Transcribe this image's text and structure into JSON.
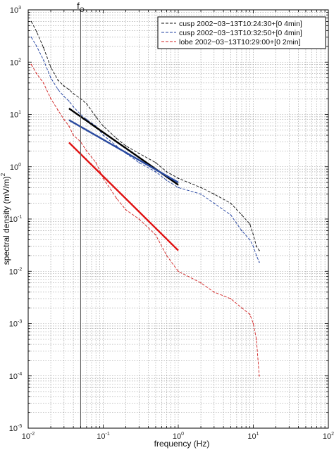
{
  "chart_data": {
    "type": "line",
    "title": "",
    "xlabel": "frequency (Hz)",
    "ylabel": "spectral density (mV/m)",
    "ylabel_exponent": "2",
    "xscale": "log",
    "yscale": "log",
    "xlim": [
      0.01,
      100
    ],
    "ylim": [
      1e-05,
      1000
    ],
    "x_ticks": [
      {
        "base": "10",
        "exp": "-2"
      },
      {
        "base": "10",
        "exp": "-1"
      },
      {
        "base": "10",
        "exp": "0"
      },
      {
        "base": "10",
        "exp": "1"
      },
      {
        "base": "10",
        "exp": "2"
      }
    ],
    "y_ticks": [
      {
        "base": "10",
        "exp": "-5"
      },
      {
        "base": "10",
        "exp": "-4"
      },
      {
        "base": "10",
        "exp": "-3"
      },
      {
        "base": "10",
        "exp": "-2"
      },
      {
        "base": "10",
        "exp": "-1"
      },
      {
        "base": "10",
        "exp": "0"
      },
      {
        "base": "10",
        "exp": "1"
      },
      {
        "base": "10",
        "exp": "2"
      },
      {
        "base": "10",
        "exp": "3"
      }
    ],
    "grid": true,
    "legend_position": "top-right",
    "annotation": {
      "text": "f",
      "subscript": "O",
      "x": 0.05
    },
    "series": [
      {
        "name": "cusp 2002−03−13T10:24:30+[0 4min]",
        "color": "#111111",
        "style": "dashed",
        "points": [
          [
            0.011,
            600
          ],
          [
            0.013,
            380
          ],
          [
            0.016,
            190
          ],
          [
            0.02,
            80
          ],
          [
            0.025,
            45
          ],
          [
            0.03,
            35
          ],
          [
            0.035,
            30
          ],
          [
            0.04,
            25
          ],
          [
            0.05,
            20
          ],
          [
            0.06,
            16
          ],
          [
            0.08,
            9
          ],
          [
            0.1,
            6
          ],
          [
            0.15,
            3.5
          ],
          [
            0.2,
            2.5
          ],
          [
            0.3,
            1.8
          ],
          [
            0.5,
            1.2
          ],
          [
            0.7,
            0.8
          ],
          [
            1,
            0.6
          ],
          [
            2,
            0.4
          ],
          [
            3,
            0.3
          ],
          [
            5,
            0.2
          ],
          [
            7,
            0.12
          ],
          [
            9,
            0.08
          ],
          [
            10,
            0.05
          ],
          [
            11,
            0.03
          ],
          [
            12,
            0.025
          ]
        ]
      },
      {
        "name": "cusp 2002−03−13T10:32:50+[0 4min]",
        "color": "#2040a0",
        "style": "dashed",
        "points": [
          [
            0.011,
            300
          ],
          [
            0.013,
            200
          ],
          [
            0.016,
            110
          ],
          [
            0.02,
            50
          ],
          [
            0.025,
            30
          ],
          [
            0.03,
            22
          ],
          [
            0.035,
            18
          ],
          [
            0.04,
            14
          ],
          [
            0.05,
            10
          ],
          [
            0.06,
            8
          ],
          [
            0.08,
            6
          ],
          [
            0.1,
            4
          ],
          [
            0.15,
            2.5
          ],
          [
            0.2,
            1.8
          ],
          [
            0.3,
            1.2
          ],
          [
            0.5,
            0.8
          ],
          [
            0.7,
            0.55
          ],
          [
            1,
            0.4
          ],
          [
            2,
            0.3
          ],
          [
            3,
            0.2
          ],
          [
            5,
            0.12
          ],
          [
            7,
            0.06
          ],
          [
            9,
            0.04
          ],
          [
            10,
            0.03
          ],
          [
            11,
            0.02
          ],
          [
            12,
            0.015
          ]
        ]
      },
      {
        "name": "lobe 2002−03−13T10:29:00+[0 2min]",
        "color": "#d02020",
        "style": "dashed",
        "points": [
          [
            0.011,
            90
          ],
          [
            0.013,
            60
          ],
          [
            0.016,
            40
          ],
          [
            0.02,
            20
          ],
          [
            0.025,
            12
          ],
          [
            0.03,
            8
          ],
          [
            0.035,
            6
          ],
          [
            0.04,
            4
          ],
          [
            0.05,
            3
          ],
          [
            0.06,
            2
          ],
          [
            0.08,
            1.2
          ],
          [
            0.1,
            0.6
          ],
          [
            0.15,
            0.25
          ],
          [
            0.2,
            0.15
          ],
          [
            0.3,
            0.1
          ],
          [
            0.5,
            0.05
          ],
          [
            0.7,
            0.02
          ],
          [
            1,
            0.01
          ],
          [
            2,
            0.006
          ],
          [
            3,
            0.004
          ],
          [
            5,
            0.003
          ],
          [
            7,
            0.002
          ],
          [
            9,
            0.0015
          ],
          [
            10,
            0.001
          ],
          [
            11,
            0.0005
          ],
          [
            12,
            0.0001
          ]
        ]
      }
    ],
    "fits": [
      {
        "color": "#000000",
        "points": [
          [
            0.035,
            13
          ],
          [
            1,
            0.45
          ]
        ]
      },
      {
        "color": "#2a4aa0",
        "points": [
          [
            0.035,
            7.8
          ],
          [
            1,
            0.5
          ]
        ]
      },
      {
        "color": "#e01010",
        "points": [
          [
            0.035,
            2.9
          ],
          [
            1,
            0.025
          ]
        ]
      }
    ]
  }
}
